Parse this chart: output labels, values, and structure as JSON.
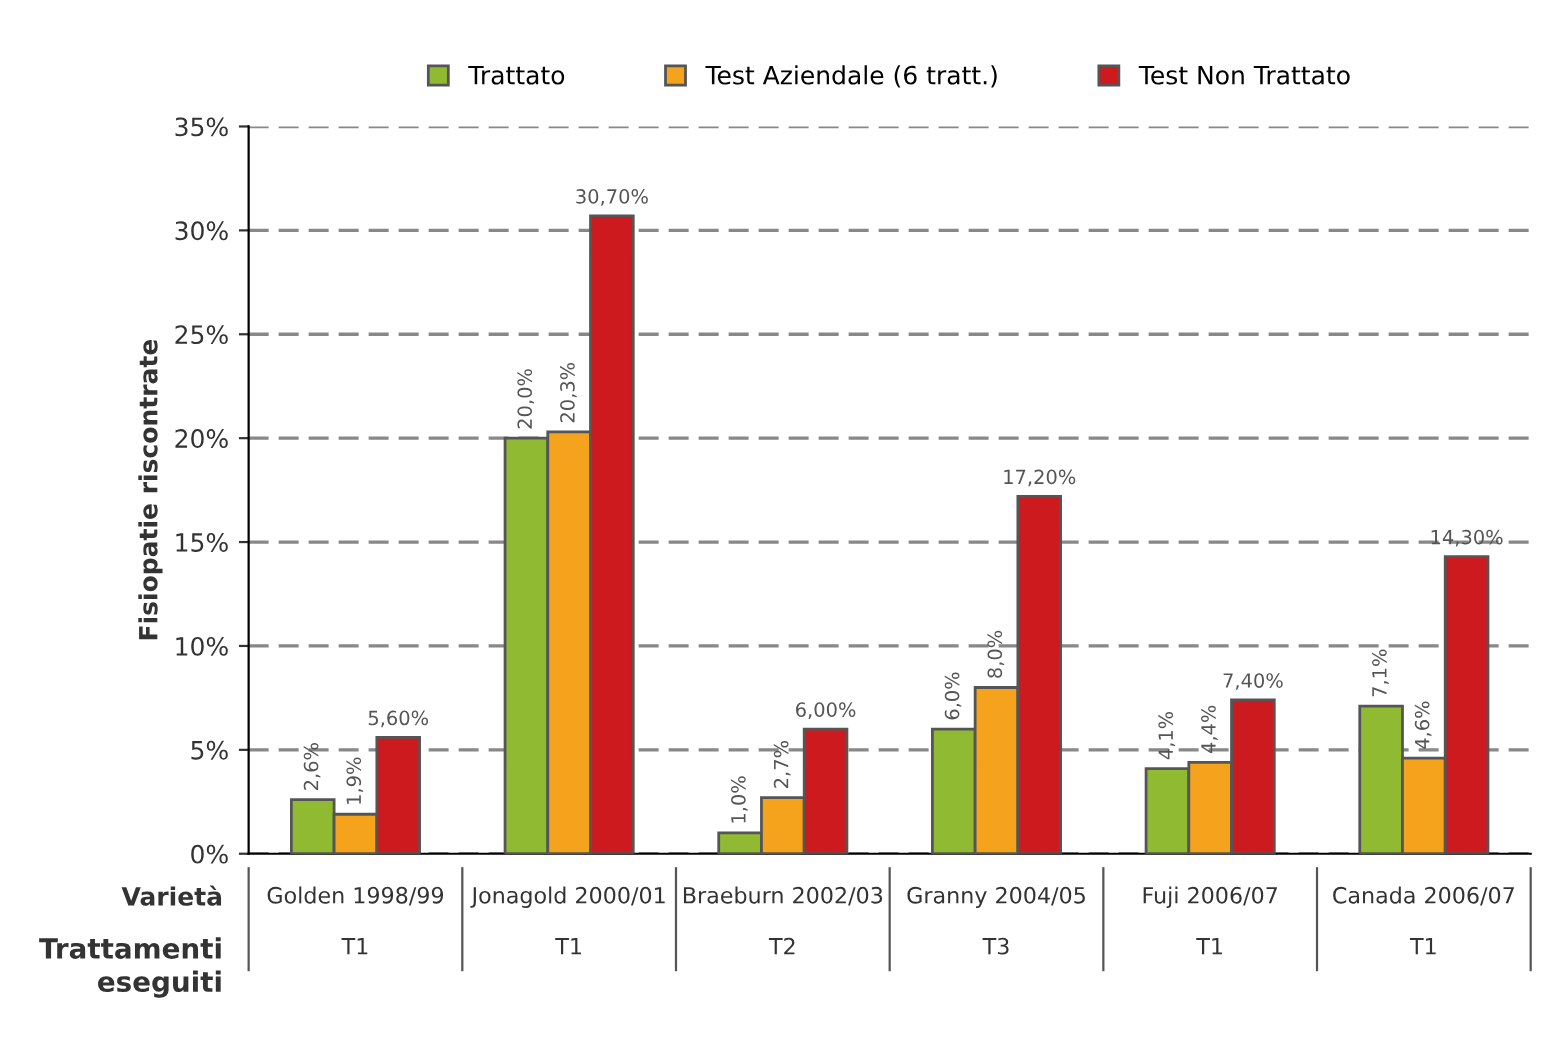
{
  "chart_data": {
    "type": "bar",
    "ylabel": "Fisiopatie riscontrate",
    "xlabel": "Varietà",
    "categories": [
      "Golden 1998/99",
      "Jonagold 2000/01",
      "Braeburn 2002/03",
      "Granny 2004/05",
      "Fuji 2006/07",
      "Canada 2006/07"
    ],
    "series": [
      {
        "name": "Trattato",
        "color": "#8fba32",
        "values": [
          2.6,
          20.0,
          1.0,
          6.0,
          4.1,
          7.1
        ],
        "value_labels": [
          "2,6%",
          "20,0%",
          "1,0%",
          "6,0%",
          "4,1%",
          "7,1%"
        ]
      },
      {
        "name": "Test Aziendale (6 tratt.)",
        "color": "#f5a21c",
        "values": [
          1.9,
          20.3,
          2.7,
          8.0,
          4.4,
          4.6
        ],
        "value_labels": [
          "1,9%",
          "20,3%",
          "2,7%",
          "8,0%",
          "4,4%",
          "4,6%"
        ]
      },
      {
        "name": "Test Non Trattato",
        "color": "#cc1a1e",
        "values": [
          5.6,
          30.7,
          6.0,
          17.2,
          7.4,
          14.3
        ],
        "value_labels": [
          "5,60%",
          "30,70%",
          "6,00%",
          "17,20%",
          "7,40%",
          "14,30%"
        ]
      }
    ],
    "ylim": [
      0,
      35
    ],
    "yticks": [
      {
        "value": 0,
        "label": "0%"
      },
      {
        "value": 5,
        "label": "5%"
      },
      {
        "value": 10,
        "label": "10%"
      },
      {
        "value": 15,
        "label": "15%"
      },
      {
        "value": 20,
        "label": "20%"
      },
      {
        "value": 25,
        "label": "25%"
      },
      {
        "value": 30,
        "label": "30%"
      },
      {
        "value": 35,
        "label": "35%"
      }
    ],
    "grid": "y",
    "legend": "top",
    "annotations": [
      "Trattamenti\neseguiti",
      "T1",
      "T1",
      "T2",
      "T3",
      "T1",
      "T1"
    ]
  }
}
